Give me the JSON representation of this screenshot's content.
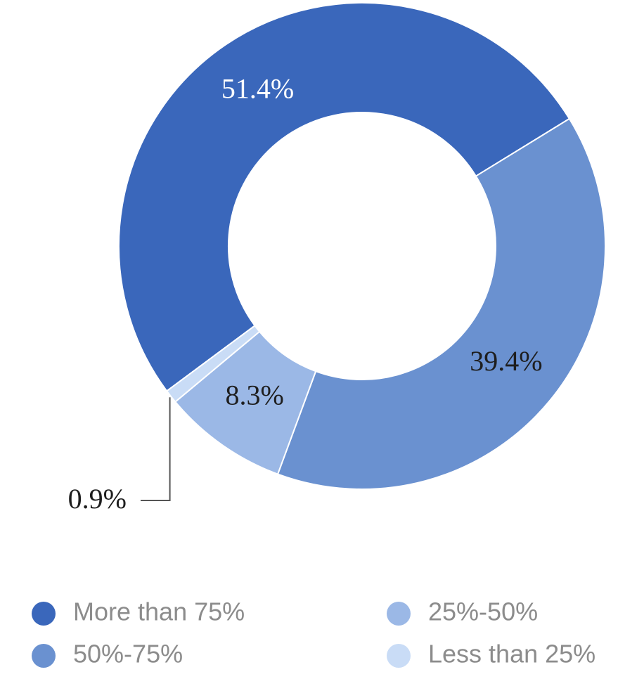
{
  "chart_data": {
    "type": "donut",
    "categories": [
      "More than 75%",
      "50%-75%",
      "25%-50%",
      "Less than 25%"
    ],
    "values": [
      51.4,
      39.4,
      8.3,
      0.9
    ],
    "value_labels": [
      "51.4%",
      "39.4%",
      "8.3%",
      "0.9%"
    ],
    "colors": [
      "#3a67bb",
      "#6a91d0",
      "#9bb8e6",
      "#c9dcf6"
    ]
  }
}
